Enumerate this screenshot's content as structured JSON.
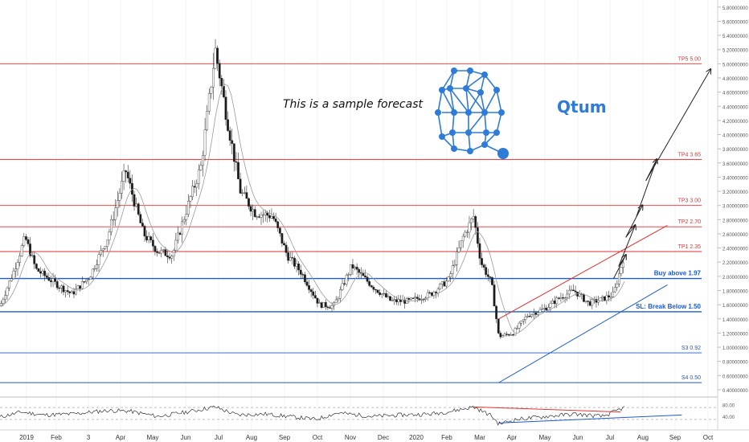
{
  "chart_data": {
    "type": "candlestick",
    "y_axis": {
      "min": 0.32,
      "max": 5.9,
      "ticks": [
        "5.80000000",
        "5.60000000",
        "5.40000000",
        "5.20000000",
        "5.00000000",
        "4.80000000",
        "4.60000000",
        "4.40000000",
        "4.20000000",
        "4.00000000",
        "3.80000000",
        "3.60000000",
        "3.40000000",
        "3.20000000",
        "3.00000000",
        "2.80000000",
        "2.60000000",
        "2.40000000",
        "2.20000000",
        "2.00000000",
        "1.80000000",
        "1.60000000",
        "1.40000000",
        "1.20000000",
        "1.00000000",
        "0.80000000",
        "0.60000000",
        "0.40000000"
      ]
    },
    "x_axis": {
      "ticks": [
        "2019",
        "Feb",
        "3",
        "Apr",
        "May",
        "Jun",
        "Jul",
        "Aug",
        "Sep",
        "Oct",
        "Nov",
        "Dec",
        "2020",
        "Feb",
        "Mar",
        "Apr",
        "May",
        "Jun",
        "Jul",
        "Aug",
        "Sep",
        "Oct"
      ]
    },
    "price_path": [
      [
        0.0,
        1.58
      ],
      [
        0.02,
        2.1
      ],
      [
        0.035,
        2.55
      ],
      [
        0.05,
        2.1
      ],
      [
        0.08,
        1.88
      ],
      [
        0.1,
        1.75
      ],
      [
        0.125,
        2.0
      ],
      [
        0.15,
        2.55
      ],
      [
        0.175,
        3.5
      ],
      [
        0.19,
        2.95
      ],
      [
        0.2,
        2.6
      ],
      [
        0.22,
        2.35
      ],
      [
        0.24,
        2.3
      ],
      [
        0.265,
        3.1
      ],
      [
        0.28,
        3.55
      ],
      [
        0.3,
        5.2
      ],
      [
        0.315,
        4.3
      ],
      [
        0.335,
        3.2
      ],
      [
        0.355,
        2.9
      ],
      [
        0.38,
        2.85
      ],
      [
        0.4,
        2.3
      ],
      [
        0.42,
        2.05
      ],
      [
        0.445,
        1.6
      ],
      [
        0.465,
        1.58
      ],
      [
        0.49,
        2.15
      ],
      [
        0.52,
        1.85
      ],
      [
        0.545,
        1.65
      ],
      [
        0.57,
        1.65
      ],
      [
        0.6,
        1.75
      ],
      [
        0.625,
        1.95
      ],
      [
        0.645,
        2.55
      ],
      [
        0.66,
        2.85
      ],
      [
        0.67,
        2.2
      ],
      [
        0.685,
        1.9
      ],
      [
        0.695,
        1.15
      ],
      [
        0.715,
        1.2
      ],
      [
        0.735,
        1.45
      ],
      [
        0.76,
        1.55
      ],
      [
        0.78,
        1.7
      ],
      [
        0.8,
        1.8
      ],
      [
        0.82,
        1.62
      ],
      [
        0.84,
        1.68
      ],
      [
        0.855,
        1.75
      ],
      [
        0.87,
        2.3
      ]
    ],
    "rsi": {
      "ticks": [
        "80.00",
        "40.00"
      ],
      "range": [
        0,
        100
      ],
      "levels": [
        70,
        30
      ],
      "path": [
        [
          0.0,
          38
        ],
        [
          0.03,
          55
        ],
        [
          0.06,
          45
        ],
        [
          0.1,
          48
        ],
        [
          0.15,
          60
        ],
        [
          0.18,
          58
        ],
        [
          0.22,
          40
        ],
        [
          0.26,
          55
        ],
        [
          0.3,
          72
        ],
        [
          0.33,
          45
        ],
        [
          0.37,
          48
        ],
        [
          0.41,
          38
        ],
        [
          0.44,
          30
        ],
        [
          0.47,
          52
        ],
        [
          0.52,
          40
        ],
        [
          0.56,
          45
        ],
        [
          0.6,
          48
        ],
        [
          0.63,
          58
        ],
        [
          0.66,
          72
        ],
        [
          0.685,
          42
        ],
        [
          0.695,
          15
        ],
        [
          0.72,
          30
        ],
        [
          0.76,
          40
        ],
        [
          0.8,
          48
        ],
        [
          0.84,
          40
        ],
        [
          0.87,
          70
        ]
      ],
      "trendline_red": [
        [
          0.66,
          72
        ],
        [
          0.865,
          55
        ]
      ],
      "trendline_blue": [
        [
          0.695,
          18
        ],
        [
          0.95,
          45
        ]
      ]
    },
    "levels": [
      {
        "label": "TP5 5.00",
        "value": 5.0,
        "color": "#e03131"
      },
      {
        "label": "TP4 3.65",
        "value": 3.65,
        "color": "#e03131"
      },
      {
        "label": "TP3 3.00",
        "value": 3.0,
        "color": "#e03131"
      },
      {
        "label": "TP2 2.70",
        "value": 2.7,
        "color": "#e03131"
      },
      {
        "label": "TP1 2.35",
        "value": 2.35,
        "color": "#e03131"
      },
      {
        "label": "Buy above 1.97",
        "value": 1.97,
        "color": "#1e5bc6",
        "bold": true
      },
      {
        "label": "SL: Break Below 1.50",
        "value": 1.5,
        "color": "#1e5bc6",
        "bold": true
      },
      {
        "label": "S3 0.92",
        "value": 0.92,
        "color": "#1e5bc6"
      },
      {
        "label": "S4 0.50",
        "value": 0.5,
        "color": "#1e5bc6"
      }
    ],
    "channel_upper": [
      [
        0.695,
        1.4
      ],
      [
        0.93,
        2.72
      ]
    ],
    "channel_lower": [
      [
        0.695,
        0.5
      ],
      [
        0.93,
        1.88
      ]
    ],
    "forecast_zigzag": [
      [
        0.855,
        1.97
      ],
      [
        0.872,
        2.3
      ],
      [
        0.862,
        2.14
      ],
      [
        0.885,
        2.72
      ],
      [
        0.872,
        2.55
      ],
      [
        0.895,
        3.0
      ],
      [
        0.887,
        2.85
      ],
      [
        0.915,
        3.65
      ],
      [
        0.9,
        3.35
      ],
      [
        0.99,
        4.92
      ]
    ],
    "annotation": "This is a sample forecast",
    "symbol": "Qtum"
  }
}
